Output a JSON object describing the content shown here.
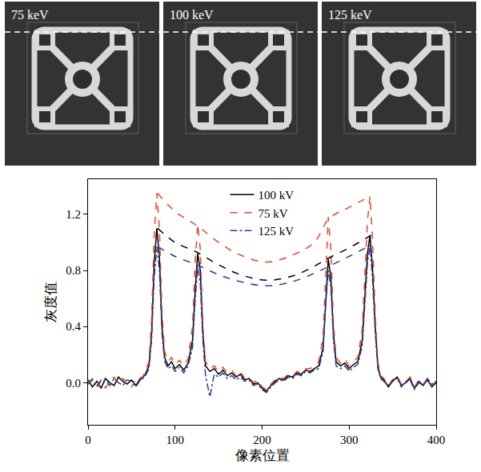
{
  "image_panels": [
    "75 keV",
    "100 keV",
    "125 keV"
  ],
  "chart_data": {
    "type": "line",
    "x_label": "像素位置",
    "y_label": "灰度值",
    "xlim": [
      0,
      400
    ],
    "xticks": [
      0,
      100,
      200,
      300,
      400
    ],
    "ylim": [
      -0.3,
      1.45
    ],
    "yticks": [
      {
        "value": 0,
        "label": "0.0"
      },
      0.4,
      0.8,
      1.2
    ],
    "grid": false,
    "legend": "top",
    "x": [
      0,
      5,
      10,
      15,
      20,
      25,
      30,
      35,
      40,
      45,
      50,
      55,
      60,
      65,
      70,
      73,
      76,
      79,
      82,
      85,
      88,
      92,
      96,
      100,
      105,
      110,
      115,
      120,
      123,
      126,
      129,
      132,
      135,
      140,
      145,
      150,
      155,
      160,
      165,
      170,
      175,
      180,
      185,
      190,
      195,
      200,
      205,
      210,
      215,
      220,
      225,
      230,
      235,
      240,
      245,
      250,
      255,
      260,
      265,
      270,
      273,
      276,
      279,
      282,
      285,
      290,
      295,
      300,
      305,
      310,
      315,
      318,
      321,
      324,
      327,
      330,
      333,
      336,
      340,
      345,
      350,
      355,
      360,
      365,
      370,
      375,
      380,
      385,
      390,
      395,
      400
    ],
    "series": [
      {
        "name": "100 kV",
        "color": "#000000",
        "line_style": "solid",
        "values": [
          0.02,
          -0.03,
          0.01,
          -0.04,
          0.03,
          0.0,
          -0.02,
          0.04,
          0.01,
          -0.01,
          0.02,
          -0.02,
          0.03,
          0.05,
          0.12,
          0.35,
          0.85,
          1.1,
          0.9,
          0.4,
          0.18,
          0.12,
          0.15,
          0.1,
          0.13,
          0.09,
          0.14,
          0.3,
          0.65,
          0.92,
          0.8,
          0.35,
          0.12,
          0.08,
          0.1,
          0.06,
          0.09,
          0.05,
          0.07,
          0.04,
          0.06,
          0.02,
          0.03,
          -0.01,
          0.0,
          -0.04,
          -0.06,
          -0.02,
          0.01,
          0.03,
          0.02,
          0.05,
          0.04,
          0.07,
          0.06,
          0.09,
          0.08,
          0.1,
          0.12,
          0.25,
          0.6,
          0.88,
          0.75,
          0.35,
          0.15,
          0.12,
          0.14,
          0.1,
          0.13,
          0.15,
          0.3,
          0.6,
          0.92,
          1.05,
          0.8,
          0.4,
          0.12,
          0.04,
          0.02,
          -0.03,
          0.01,
          0.04,
          -0.02,
          0.0,
          0.03,
          -0.04,
          0.01,
          -0.02,
          0.02,
          -0.03,
          0.0
        ],
        "envelope": {
          "x": [
            80,
            100,
            125,
            150,
            175,
            205,
            235,
            260,
            277,
            300,
            325
          ],
          "values": [
            1.1,
            1.0,
            0.93,
            0.84,
            0.77,
            0.73,
            0.76,
            0.83,
            0.89,
            0.96,
            1.05
          ]
        }
      },
      {
        "name": "75 kV",
        "color": "#e8462a",
        "line_style": "dash",
        "values": [
          0.0,
          0.03,
          -0.02,
          0.02,
          -0.04,
          0.01,
          0.04,
          -0.01,
          0.03,
          0.0,
          -0.03,
          0.02,
          0.01,
          0.07,
          0.15,
          0.45,
          1.05,
          1.35,
          1.1,
          0.5,
          0.22,
          0.15,
          0.18,
          0.13,
          0.16,
          0.12,
          0.17,
          0.4,
          0.85,
          1.13,
          0.95,
          0.4,
          0.15,
          0.1,
          0.12,
          0.08,
          0.11,
          0.07,
          0.09,
          0.05,
          0.08,
          0.03,
          0.04,
          0.0,
          0.02,
          -0.03,
          -0.05,
          -0.01,
          0.02,
          0.04,
          0.03,
          0.06,
          0.05,
          0.08,
          0.07,
          0.1,
          0.1,
          0.12,
          0.15,
          0.32,
          0.8,
          1.18,
          0.95,
          0.42,
          0.18,
          0.14,
          0.17,
          0.12,
          0.15,
          0.18,
          0.38,
          0.75,
          1.15,
          1.33,
          1.0,
          0.48,
          0.15,
          0.05,
          0.03,
          -0.02,
          0.02,
          0.05,
          -0.01,
          0.01,
          0.04,
          -0.03,
          0.02,
          -0.01,
          0.03,
          -0.02,
          0.01
        ],
        "envelope": {
          "x": [
            80,
            100,
            125,
            150,
            175,
            205,
            235,
            260,
            277,
            300,
            325
          ],
          "values": [
            1.35,
            1.22,
            1.12,
            1.0,
            0.91,
            0.86,
            0.91,
            1.0,
            1.17,
            1.25,
            1.33
          ]
        }
      },
      {
        "name": "125 kV",
        "color": "#2a3f9e",
        "line_style": "dashdot",
        "values": [
          -0.01,
          0.02,
          -0.03,
          0.01,
          0.02,
          -0.02,
          0.03,
          0.0,
          -0.02,
          0.02,
          0.01,
          -0.03,
          0.02,
          0.04,
          0.1,
          0.3,
          0.75,
          0.97,
          0.8,
          0.35,
          0.15,
          0.1,
          0.12,
          0.08,
          0.11,
          0.07,
          0.12,
          0.25,
          0.58,
          0.83,
          0.7,
          0.3,
          0.05,
          -0.1,
          0.06,
          0.04,
          0.07,
          0.03,
          0.05,
          0.02,
          0.04,
          0.01,
          0.02,
          -0.02,
          -0.01,
          -0.05,
          -0.07,
          -0.03,
          0.0,
          0.02,
          0.01,
          0.04,
          0.03,
          0.06,
          0.05,
          0.08,
          0.07,
          0.09,
          0.1,
          0.22,
          0.55,
          0.8,
          0.68,
          0.3,
          0.12,
          0.1,
          0.12,
          0.08,
          0.11,
          0.13,
          0.26,
          0.55,
          0.85,
          0.98,
          0.72,
          0.35,
          0.1,
          0.03,
          0.01,
          -0.02,
          0.02,
          0.03,
          -0.03,
          0.01,
          0.02,
          -0.05,
          0.0,
          -0.02,
          0.03,
          -0.01,
          0.01
        ],
        "envelope": {
          "x": [
            80,
            100,
            125,
            150,
            175,
            205,
            235,
            260,
            277,
            300,
            325
          ],
          "values": [
            0.97,
            0.9,
            0.84,
            0.77,
            0.72,
            0.69,
            0.72,
            0.78,
            0.83,
            0.9,
            0.98
          ]
        }
      }
    ]
  }
}
